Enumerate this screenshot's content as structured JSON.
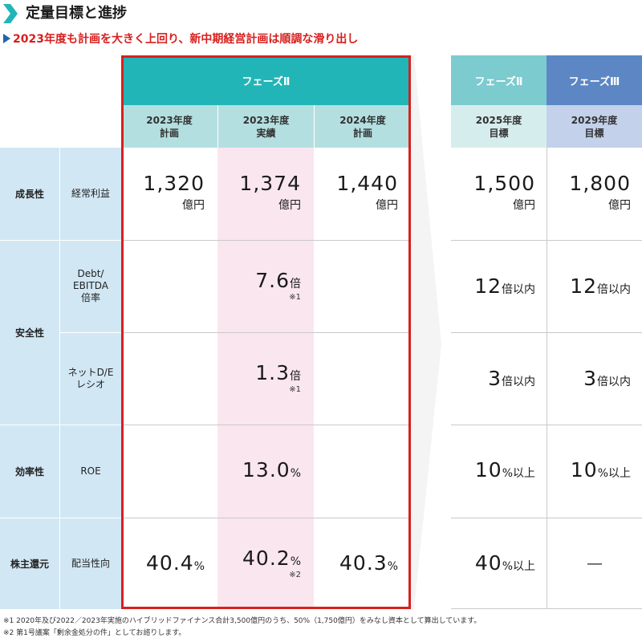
{
  "header": {
    "title": "定量目標と進捗",
    "subtitle": "2023年度も計画を大きく上回り、新中期経営計画は順調な滑り出し"
  },
  "phases": {
    "phase2_label": "フェーズⅡ",
    "phase3_label": "フェーズⅢ"
  },
  "columns": [
    {
      "label": "2023年度\n計画"
    },
    {
      "label": "2023年度\n実績"
    },
    {
      "label": "2024年度\n計画"
    },
    {
      "label": "2025年度\n目標"
    },
    {
      "label": "2029年度\n目標"
    }
  ],
  "categories": {
    "growth": "成長性",
    "safety": "安全性",
    "efficiency": "効率性",
    "shareholder": "株主還元"
  },
  "metrics": {
    "ordinary_profit": "経常利益",
    "debt_ebitda": "Debt/\nEBITDA\n倍率",
    "net_de": "ネットD/E\nレシオ",
    "roe": "ROE",
    "payout": "配当性向"
  },
  "rows": {
    "ordinary_profit": {
      "v2023_plan": {
        "num": "1,320",
        "unit": "億円"
      },
      "v2023_actual": {
        "num": "1,374",
        "unit": "億円"
      },
      "v2024_plan": {
        "num": "1,440",
        "unit": "億円"
      },
      "v2025_target": {
        "num": "1,500",
        "unit": "億円"
      },
      "v2029_target": {
        "num": "1,800",
        "unit": "億円"
      }
    },
    "debt_ebitda": {
      "v2023_actual": {
        "num": "7.6",
        "unit": "倍",
        "note": "※1"
      },
      "v2025_target": {
        "num": "12",
        "unit": "倍以内"
      },
      "v2029_target": {
        "num": "12",
        "unit": "倍以内"
      }
    },
    "net_de": {
      "v2023_actual": {
        "num": "1.3",
        "unit": "倍",
        "note": "※1"
      },
      "v2025_target": {
        "num": "3",
        "unit": "倍以内"
      },
      "v2029_target": {
        "num": "3",
        "unit": "倍以内"
      }
    },
    "roe": {
      "v2023_actual": {
        "num": "13.0",
        "unit": "%"
      },
      "v2025_target": {
        "num": "10",
        "unit": "%以上"
      },
      "v2029_target": {
        "num": "10",
        "unit": "%以上"
      }
    },
    "payout": {
      "v2023_plan": {
        "num": "40.4",
        "unit": "%"
      },
      "v2023_actual": {
        "num": "40.2",
        "unit": "%",
        "note": "※2"
      },
      "v2024_plan": {
        "num": "40.3",
        "unit": "%"
      },
      "v2025_target": {
        "num": "40",
        "unit": "%以上"
      },
      "v2029_target": {
        "dash": "―"
      }
    }
  },
  "footnotes": [
    "※1  2020年及び2022／2023年実施のハイブリッドファイナンス合計3,500億円のうち、50%（1,750億円）をみなし資本として算出しています。",
    "※2  第1号議案「剰余金処分の件」としてお諮りします。"
  ],
  "colors": {
    "phase2_teal": "#22b5b7",
    "phase2_target_teal": "#7ccbcf",
    "phase3_blue": "#5c87c4",
    "subheader_teal": "#b4dfe0",
    "subheader_target": "#d6eded",
    "subheader_phase3": "#c3d1ea",
    "left_col_blue": "#d2e7f4",
    "actual_pink": "#fae6ef",
    "frame_red": "#d7201e",
    "arrow_gray": "#f4f4f4"
  }
}
